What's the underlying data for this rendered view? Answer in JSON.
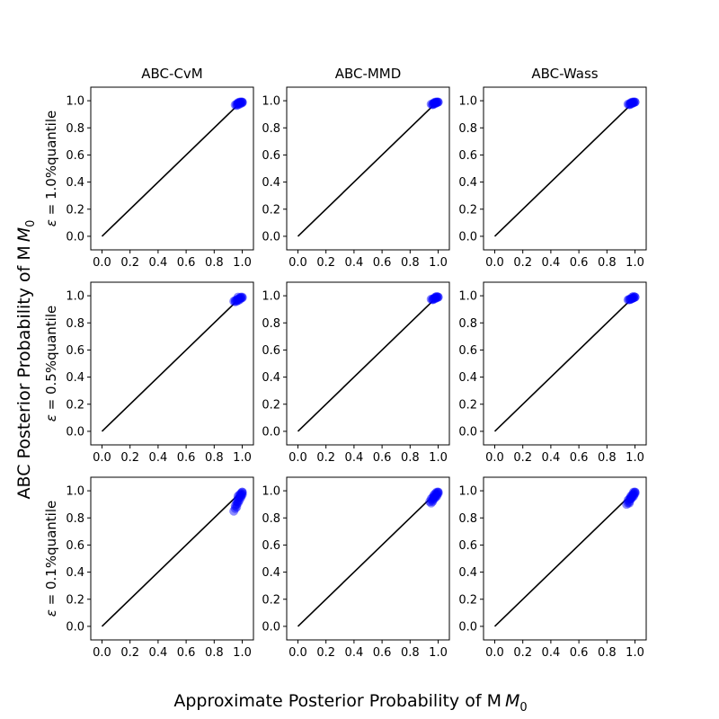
{
  "figure": {
    "xlabel_main": "Approximate Posterior Probability of M",
    "xlabel_sub": "0",
    "ylabel_main": "ABC Posterior Probability of M",
    "ylabel_sub": "0",
    "point_color": "#0000ff",
    "line_color": "#000000"
  },
  "chart_data": {
    "type": "scatter",
    "columns": [
      "ABC-CvM",
      "ABC-MMD",
      "ABC-Wass"
    ],
    "rows": [
      {
        "epsilon": "1.0%",
        "label_prefix": "ε = ",
        "label_suffix": "quantile"
      },
      {
        "epsilon": "0.5%",
        "label_prefix": "ε = ",
        "label_suffix": "quantile"
      },
      {
        "epsilon": "0.1%",
        "label_prefix": "ε = ",
        "label_suffix": "quantile"
      }
    ],
    "xlim": [
      -0.08,
      1.08
    ],
    "ylim": [
      -0.1,
      1.1
    ],
    "xticks": [
      "0.0",
      "0.2",
      "0.4",
      "0.6",
      "0.8",
      "1.0"
    ],
    "yticks": [
      "0.0",
      "0.2",
      "0.4",
      "0.6",
      "0.8",
      "1.0"
    ],
    "reference_line": {
      "x": [
        0,
        1
      ],
      "y": [
        0,
        1
      ]
    },
    "panels": [
      {
        "row": 0,
        "col": 0,
        "x": [
          0.95,
          0.96,
          0.97,
          0.98,
          0.99,
          1.0,
          0.96,
          0.97,
          0.98,
          0.99,
          1.0,
          0.97,
          0.98,
          0.99,
          1.0
        ],
        "y": [
          0.97,
          0.975,
          0.98,
          0.985,
          0.99,
          0.99,
          0.965,
          0.97,
          0.975,
          0.98,
          0.985,
          0.985,
          0.99,
          0.99,
          0.99
        ]
      },
      {
        "row": 0,
        "col": 1,
        "x": [
          0.95,
          0.96,
          0.97,
          0.98,
          0.99,
          1.0,
          0.96,
          0.97,
          0.98,
          0.99,
          1.0,
          0.97,
          0.98,
          0.99
        ],
        "y": [
          0.975,
          0.975,
          0.98,
          0.985,
          0.99,
          0.99,
          0.97,
          0.975,
          0.98,
          0.985,
          0.99,
          0.985,
          0.99,
          0.99
        ]
      },
      {
        "row": 0,
        "col": 2,
        "x": [
          0.95,
          0.96,
          0.97,
          0.98,
          0.99,
          1.0,
          0.96,
          0.97,
          0.98,
          0.99,
          1.0,
          0.97,
          0.98,
          0.99
        ],
        "y": [
          0.975,
          0.975,
          0.98,
          0.985,
          0.99,
          0.99,
          0.97,
          0.975,
          0.98,
          0.985,
          0.99,
          0.985,
          0.99,
          0.99
        ]
      },
      {
        "row": 1,
        "col": 0,
        "x": [
          0.94,
          0.95,
          0.96,
          0.97,
          0.98,
          0.99,
          1.0,
          0.95,
          0.96,
          0.97,
          0.98,
          0.99,
          1.0,
          0.97,
          0.99
        ],
        "y": [
          0.96,
          0.965,
          0.97,
          0.975,
          0.98,
          0.985,
          0.99,
          0.955,
          0.96,
          0.965,
          0.97,
          0.98,
          0.985,
          0.99,
          0.99
        ]
      },
      {
        "row": 1,
        "col": 1,
        "x": [
          0.95,
          0.96,
          0.97,
          0.98,
          0.99,
          1.0,
          0.96,
          0.97,
          0.98,
          0.99,
          1.0,
          0.98,
          0.99
        ],
        "y": [
          0.975,
          0.97,
          0.98,
          0.985,
          0.99,
          0.99,
          0.975,
          0.975,
          0.98,
          0.985,
          0.99,
          0.99,
          0.995
        ]
      },
      {
        "row": 1,
        "col": 2,
        "x": [
          0.95,
          0.96,
          0.97,
          0.98,
          0.99,
          1.0,
          0.96,
          0.97,
          0.98,
          0.99,
          1.0,
          0.98,
          0.99
        ],
        "y": [
          0.97,
          0.975,
          0.975,
          0.98,
          0.985,
          0.99,
          0.97,
          0.975,
          0.98,
          0.985,
          0.99,
          0.99,
          0.995
        ]
      },
      {
        "row": 2,
        "col": 0,
        "x": [
          0.94,
          0.95,
          0.96,
          0.97,
          0.98,
          0.99,
          1.0,
          0.95,
          0.96,
          0.97,
          0.98,
          0.99,
          1.0,
          0.96,
          0.97,
          0.98,
          0.99,
          1.0,
          0.97,
          0.99,
          1.0
        ],
        "y": [
          0.85,
          0.87,
          0.9,
          0.91,
          0.93,
          0.95,
          0.97,
          0.89,
          0.92,
          0.94,
          0.95,
          0.96,
          0.98,
          0.88,
          0.96,
          0.97,
          0.98,
          0.99,
          0.92,
          0.97,
          0.99
        ]
      },
      {
        "row": 2,
        "col": 1,
        "x": [
          0.94,
          0.95,
          0.96,
          0.97,
          0.98,
          0.99,
          1.0,
          0.95,
          0.96,
          0.97,
          0.98,
          0.99,
          1.0,
          0.96,
          0.97,
          0.98,
          0.99,
          1.0,
          0.97,
          0.99
        ],
        "y": [
          0.92,
          0.91,
          0.93,
          0.94,
          0.95,
          0.96,
          0.98,
          0.94,
          0.95,
          0.96,
          0.96,
          0.97,
          0.99,
          0.92,
          0.97,
          0.98,
          0.98,
          0.99,
          0.95,
          0.99
        ]
      },
      {
        "row": 2,
        "col": 2,
        "x": [
          0.94,
          0.95,
          0.96,
          0.97,
          0.98,
          0.99,
          1.0,
          0.95,
          0.96,
          0.97,
          0.98,
          0.99,
          1.0,
          0.96,
          0.97,
          0.98,
          0.99,
          1.0,
          0.97,
          0.99
        ],
        "y": [
          0.9,
          0.91,
          0.92,
          0.94,
          0.95,
          0.96,
          0.98,
          0.93,
          0.94,
          0.95,
          0.96,
          0.97,
          0.99,
          0.91,
          0.96,
          0.97,
          0.98,
          0.99,
          0.94,
          0.99
        ]
      }
    ]
  }
}
